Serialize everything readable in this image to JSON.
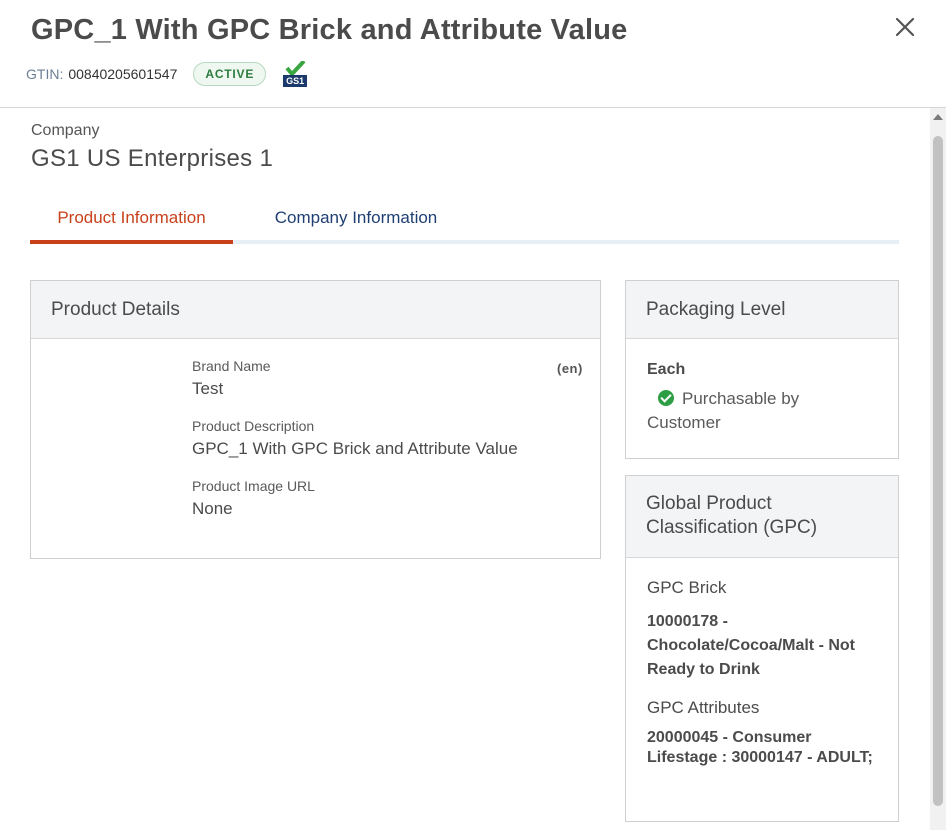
{
  "header": {
    "title": "GPC_1 With GPC Brick and Attribute Value",
    "gtin_label": "GTIN:",
    "gtin_value": "00840205601547",
    "status_badge": "ACTIVE",
    "gs1_logo_text": "GS1",
    "close_icon": "close-icon"
  },
  "company": {
    "label": "Company",
    "name": "GS1 US Enterprises 1"
  },
  "tabs": [
    {
      "label": "Product Information",
      "active": true
    },
    {
      "label": "Company Information",
      "active": false
    }
  ],
  "product_details": {
    "heading": "Product Details",
    "language": "(en)",
    "fields": [
      {
        "label": "Brand Name",
        "value": "Test"
      },
      {
        "label": "Product Description",
        "value": "GPC_1 With GPC Brick and Attribute Value"
      },
      {
        "label": "Product Image URL",
        "value": "None"
      }
    ]
  },
  "packaging": {
    "heading": "Packaging Level",
    "level": "Each",
    "purchasable": "Purchasable by Customer"
  },
  "gpc": {
    "heading": "Global Product Classification (GPC)",
    "brick_label": "GPC Brick",
    "brick_value": "10000178 - Chocolate/Cocoa/Malt - Not Ready to Drink",
    "attributes_label": "GPC Attributes",
    "attributes_value": "20000045 - Consumer Lifestage : 30000147 - ADULT;"
  },
  "colors": {
    "accent_tab": "#c8411b",
    "link_tab": "#1f3f73",
    "badge_green": "#2e7d3e",
    "check_green": "#2e9e44"
  }
}
